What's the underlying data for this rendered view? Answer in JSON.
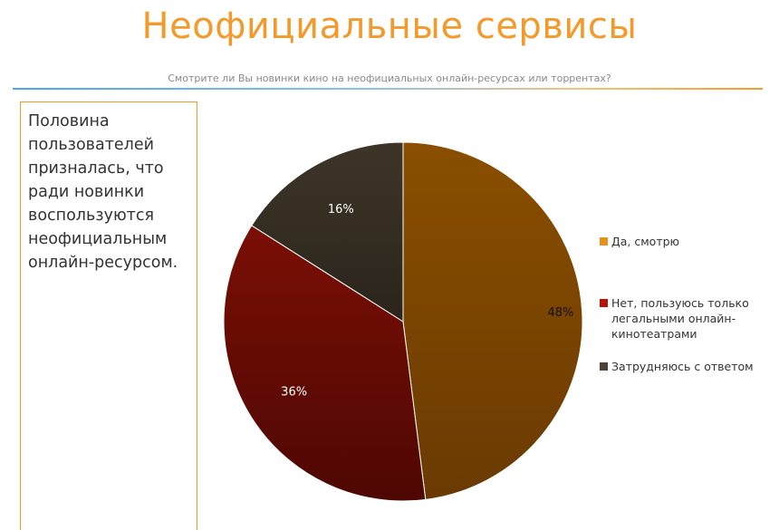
{
  "title": "Неофициальные сервисы",
  "subtitle": "Смотрите ли Вы новинки кино на неофициальных онлайн-ресурсах или торрентах?",
  "summary_text": "Половина пользователей призналась, что ради новинки воспользуются неофициальным онлайн-ресурсом.",
  "chart_data": {
    "type": "pie",
    "title": "Смотрите ли Вы новинки кино на неофициальных онлайн-ресурсах или торрентах?",
    "legend_position": "right",
    "slices": [
      {
        "label": "Да, смотрю",
        "value": 48,
        "value_label": "48%",
        "color": "#8a4f00",
        "color_dark": "#6a3a02",
        "label_color": "#111111"
      },
      {
        "label": "Нет, пользуюсь только легальными онлайн-кинотеатрами",
        "value": 36,
        "value_label": "36%",
        "color": "#7a0f05",
        "color_dark": "#4e0703",
        "label_color": "#ffffff"
      },
      {
        "label": "Затрудняюсь с ответом",
        "value": 16,
        "value_label": "16%",
        "color": "#3d3528",
        "color_dark": "#2a241b",
        "label_color": "#ffffff"
      }
    ],
    "legend_labels": [
      "Да, смотрю",
      "Нет, пользуюсь только\nлегальными онлайн-\nкинотеатрами",
      "Затрудняюсь с ответом"
    ],
    "legend_colors": [
      "#e8901c",
      "#b3140a",
      "#4a4236"
    ]
  }
}
